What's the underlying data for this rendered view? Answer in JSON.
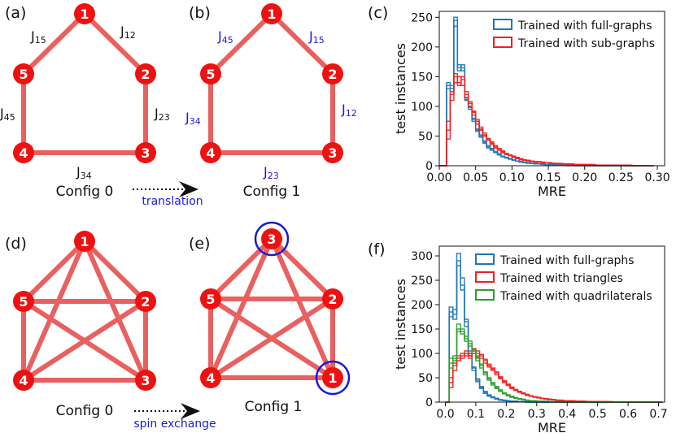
{
  "panels": {
    "a": {
      "label": "(a)",
      "nodes": [
        "1",
        "2",
        "3",
        "4",
        "5"
      ],
      "couplings": {
        "top_left": "J15",
        "top_right": "J12",
        "right": "J23",
        "left": "J45",
        "bottom": "J34"
      },
      "config": "Config 0"
    },
    "b": {
      "label": "(b)",
      "nodes": [
        "1",
        "2",
        "3",
        "4",
        "5"
      ],
      "couplings": {
        "top_left": "J45",
        "top_right": "J15",
        "right": "J12",
        "left": "J34",
        "bottom": "J23"
      },
      "config": "Config 1"
    },
    "translation_label": "translation",
    "c": {
      "label": "(c)"
    },
    "d": {
      "label": "(d)",
      "nodes": [
        "1",
        "2",
        "3",
        "4",
        "5"
      ],
      "config": "Config 0"
    },
    "e": {
      "label": "(e)",
      "nodes": [
        "3",
        "2",
        "1",
        "4",
        "5"
      ],
      "config": "Config 1"
    },
    "spin_exchange_label": "spin exchange",
    "f": {
      "label": "(f)"
    }
  },
  "colors": {
    "node": "#ee1111",
    "edge": "#e96060",
    "blue_text": "#1a1ad6",
    "full": "#1f77b4",
    "sub": "#ef2020",
    "quad": "#2ca02c"
  },
  "chart_data": [
    {
      "panel": "c",
      "type": "histogram",
      "xlabel": "MRE",
      "ylabel": "test instances",
      "xlim": [
        0,
        0.31
      ],
      "ylim": [
        0,
        260
      ],
      "xticks": [
        "0.00",
        "0.05",
        "0.10",
        "0.15",
        "0.20",
        "0.25",
        "0.30"
      ],
      "yticks": [
        "0",
        "50",
        "100",
        "150",
        "200",
        "250"
      ],
      "legend_position": "top-right",
      "bin_width": 0.005,
      "series": [
        {
          "name": "Trained with full-graphs",
          "color": "#1f77b4",
          "values": [
            [
              0,
              0,
              140,
              135,
              250,
              165,
              170,
              115,
              100,
              80,
              60,
              50,
              40,
              32,
              28,
              24,
              20,
              16,
              14,
              12,
              10,
              8,
              7,
              6,
              5,
              4,
              4,
              3,
              3,
              2,
              2,
              2,
              1,
              1,
              1,
              1,
              1,
              1,
              1,
              1,
              0,
              0,
              0,
              0,
              0,
              0,
              0,
              0,
              0,
              0,
              0,
              0,
              0,
              0,
              0,
              0,
              0,
              0,
              0
            ],
            [
              0,
              0,
              130,
              125,
              235,
              170,
              160,
              110,
              95,
              75,
              58,
              48,
              38,
              30,
              26,
              22,
              18,
              15,
              13,
              11,
              9,
              8,
              6,
              5,
              5,
              4,
              3,
              3,
              2,
              2,
              2,
              1,
              1,
              1,
              1,
              1,
              1,
              0,
              0,
              0,
              0,
              0,
              0,
              0,
              0,
              0,
              0,
              0,
              0,
              0,
              0,
              0,
              0,
              0,
              0,
              0,
              0,
              0,
              0
            ],
            [
              0,
              0,
              135,
              130,
              245,
              160,
              165,
              112,
              98,
              78,
              62,
              52,
              42,
              34,
              29,
              23,
              19,
              16,
              14,
              12,
              10,
              8,
              7,
              6,
              4,
              4,
              3,
              3,
              3,
              2,
              2,
              2,
              1,
              1,
              1,
              0,
              0,
              0,
              0,
              0,
              0,
              0,
              0,
              0,
              0,
              0,
              0,
              0,
              0,
              0,
              0,
              0,
              0,
              0,
              0,
              0,
              0,
              0,
              0
            ]
          ]
        },
        {
          "name": "Trained with sub-graphs",
          "color": "#ef2020",
          "values": [
            [
              0,
              0,
              60,
              120,
              150,
              140,
              145,
              120,
              105,
              90,
              75,
              62,
              52,
              45,
              38,
              32,
              28,
              24,
              20,
              18,
              15,
              13,
              11,
              10,
              9,
              8,
              7,
              6,
              6,
              5,
              5,
              4,
              4,
              3,
              3,
              3,
              2,
              2,
              2,
              2,
              2,
              2,
              1,
              1,
              1,
              1,
              1,
              1,
              1,
              1,
              1,
              0,
              0,
              0,
              0,
              0,
              0,
              0,
              0
            ],
            [
              0,
              0,
              45,
              110,
              140,
              150,
              135,
              115,
              100,
              85,
              70,
              60,
              50,
              43,
              36,
              30,
              26,
              22,
              19,
              17,
              14,
              12,
              10,
              9,
              8,
              7,
              6,
              6,
              5,
              5,
              4,
              4,
              3,
              3,
              3,
              2,
              2,
              2,
              2,
              2,
              1,
              1,
              1,
              1,
              1,
              1,
              1,
              1,
              1,
              1,
              1,
              1,
              0,
              0,
              0,
              0,
              0,
              0,
              0
            ],
            [
              0,
              0,
              75,
              125,
              155,
              135,
              150,
              125,
              108,
              92,
              78,
              65,
              55,
              46,
              40,
              34,
              29,
              25,
              21,
              18,
              16,
              14,
              12,
              10,
              9,
              8,
              7,
              7,
              6,
              5,
              5,
              4,
              4,
              4,
              3,
              3,
              3,
              2,
              2,
              2,
              2,
              2,
              2,
              1,
              1,
              1,
              1,
              1,
              1,
              1,
              1,
              1,
              1,
              0,
              0,
              0,
              0,
              0,
              0
            ]
          ]
        }
      ]
    },
    {
      "panel": "f",
      "type": "histogram",
      "xlabel": "MRE",
      "ylabel": "test instances",
      "xlim": [
        -0.02,
        0.72
      ],
      "ylim": [
        0,
        320
      ],
      "xticks": [
        "0.0",
        "0.1",
        "0.2",
        "0.3",
        "0.4",
        "0.5",
        "0.6",
        "0.7"
      ],
      "yticks": [
        "0",
        "50",
        "100",
        "150",
        "200",
        "250",
        "300"
      ],
      "legend_position": "top-right",
      "bin_width": 0.0125,
      "series": [
        {
          "name": "Trained with full-graphs",
          "color": "#1f77b4",
          "values": [
            [
              0,
              195,
              180,
              305,
              240,
              165,
              100,
              70,
              45,
              30,
              20,
              14,
              10,
              7,
              5,
              4,
              3,
              2,
              2,
              1,
              1,
              1,
              0,
              0,
              0,
              0,
              0,
              0,
              0,
              0,
              0,
              0,
              0,
              0,
              0,
              0,
              0,
              0,
              0,
              0,
              0,
              0,
              0,
              0,
              0,
              0,
              0,
              0,
              0,
              0,
              0,
              0,
              0,
              0,
              0,
              0,
              0
            ],
            [
              0,
              185,
              170,
              290,
              255,
              155,
              95,
              65,
              42,
              28,
              18,
              12,
              9,
              6,
              4,
              3,
              2,
              2,
              1,
              1,
              1,
              0,
              0,
              0,
              0,
              0,
              0,
              0,
              0,
              0,
              0,
              0,
              0,
              0,
              0,
              0,
              0,
              0,
              0,
              0,
              0,
              0,
              0,
              0,
              0,
              0,
              0,
              0,
              0,
              0,
              0,
              0,
              0,
              0,
              0,
              0,
              0
            ],
            [
              0,
              175,
              190,
              280,
              230,
              170,
              105,
              72,
              48,
              32,
              22,
              15,
              11,
              8,
              5,
              4,
              3,
              2,
              2,
              1,
              1,
              0,
              0,
              0,
              0,
              0,
              0,
              0,
              0,
              0,
              0,
              0,
              0,
              0,
              0,
              0,
              0,
              0,
              0,
              0,
              0,
              0,
              0,
              0,
              0,
              0,
              0,
              0,
              0,
              0,
              0,
              0,
              0,
              0,
              0,
              0,
              0
            ]
          ]
        },
        {
          "name": "Trained with triangles",
          "color": "#ef2020",
          "values": [
            [
              0,
              40,
              75,
              90,
              95,
              100,
              95,
              105,
              100,
              95,
              85,
              75,
              70,
              60,
              50,
              42,
              36,
              30,
              25,
              22,
              18,
              15,
              13,
              11,
              9,
              8,
              7,
              6,
              5,
              4,
              4,
              3,
              3,
              2,
              2,
              2,
              1,
              1,
              1,
              1,
              1,
              1,
              1,
              0,
              0,
              0,
              0,
              0,
              0,
              0,
              0,
              0,
              0,
              0,
              0,
              0,
              0
            ],
            [
              0,
              30,
              65,
              85,
              100,
              95,
              100,
              110,
              95,
              90,
              80,
              72,
              65,
              56,
              48,
              40,
              34,
              28,
              24,
              20,
              17,
              14,
              12,
              10,
              9,
              7,
              6,
              5,
              5,
              4,
              3,
              3,
              2,
              2,
              2,
              1,
              1,
              1,
              1,
              1,
              1,
              0,
              0,
              0,
              0,
              0,
              0,
              0,
              0,
              0,
              0,
              0,
              0,
              0,
              0,
              0,
              0
            ],
            [
              0,
              50,
              80,
              95,
              90,
              105,
              90,
              100,
              105,
              98,
              88,
              78,
              68,
              62,
              52,
              44,
              37,
              31,
              26,
              22,
              19,
              16,
              13,
              11,
              10,
              8,
              7,
              6,
              5,
              4,
              4,
              3,
              3,
              3,
              2,
              2,
              2,
              1,
              1,
              1,
              1,
              1,
              1,
              1,
              0,
              0,
              0,
              0,
              0,
              0,
              0,
              0,
              0,
              0,
              0,
              0,
              0
            ]
          ]
        },
        {
          "name": "Trained with quadrilaterals",
          "color": "#2ca02c",
          "values": [
            [
              0,
              80,
              90,
              150,
              145,
              130,
              120,
              105,
              90,
              75,
              60,
              48,
              38,
              30,
              24,
              18,
              14,
              11,
              9,
              7,
              5,
              4,
              3,
              3,
              2,
              2,
              1,
              1,
              1,
              1,
              0,
              0,
              0,
              0,
              0,
              0,
              0,
              0,
              0,
              0,
              0,
              0,
              0,
              0,
              0,
              0,
              0,
              0,
              0,
              0,
              0,
              0,
              0,
              0,
              0,
              0,
              0
            ],
            [
              0,
              70,
              85,
              160,
              140,
              135,
              115,
              100,
              85,
              70,
              56,
              45,
              35,
              28,
              22,
              17,
              13,
              10,
              8,
              6,
              5,
              4,
              3,
              2,
              2,
              1,
              1,
              1,
              1,
              0,
              0,
              0,
              0,
              0,
              0,
              0,
              0,
              0,
              0,
              0,
              0,
              0,
              0,
              0,
              0,
              0,
              0,
              0,
              0,
              0,
              0,
              0,
              0,
              0,
              0,
              0,
              0
            ],
            [
              0,
              90,
              95,
              145,
              150,
              125,
              125,
              108,
              92,
              78,
              62,
              50,
              40,
              32,
              25,
              19,
              15,
              12,
              9,
              7,
              6,
              4,
              3,
              3,
              2,
              2,
              2,
              1,
              1,
              1,
              1,
              0,
              0,
              0,
              0,
              0,
              0,
              0,
              0,
              0,
              0,
              0,
              0,
              0,
              0,
              0,
              0,
              0,
              0,
              0,
              0,
              0,
              0,
              0,
              0,
              0,
              0
            ]
          ]
        }
      ]
    }
  ]
}
